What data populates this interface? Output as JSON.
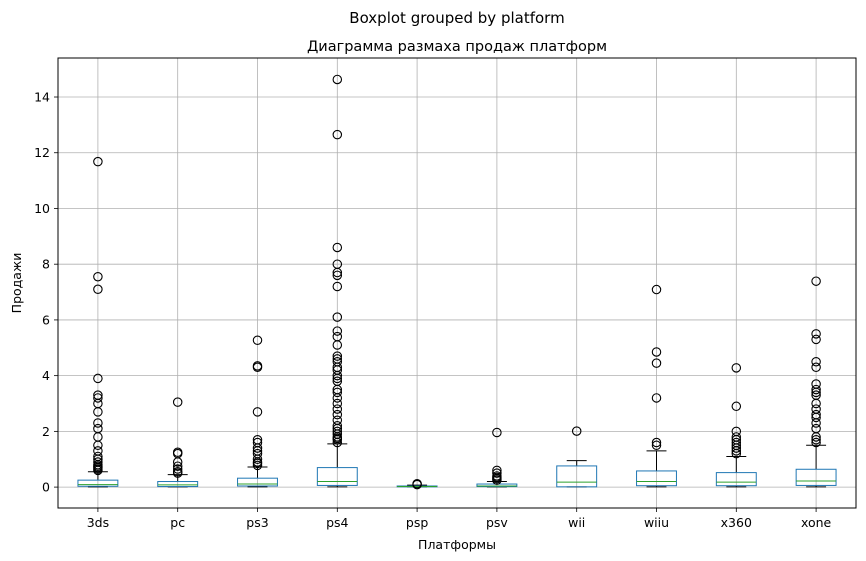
{
  "chart_data": {
    "type": "box",
    "suptitle": "Boxplot grouped by platform",
    "title": "Диаграмма размаха продаж платформ",
    "xlabel": "Платформы",
    "ylabel": "Продажи",
    "ylim": [
      -0.75,
      15.4
    ],
    "yticks": [
      0,
      2,
      4,
      6,
      8,
      10,
      12,
      14
    ],
    "grid": true,
    "colors": {
      "box": "#1f77b4",
      "median": "#2ca02c",
      "whisker": "#000000",
      "grid": "#b0b0b0",
      "flier": "#000000"
    },
    "categories": [
      "3ds",
      "pc",
      "ps3",
      "ps4",
      "psp",
      "psv",
      "wii",
      "wiiu",
      "x360",
      "xone"
    ],
    "boxes": [
      {
        "q1": 0.03,
        "median": 0.09,
        "q3": 0.25,
        "whislo": 0.01,
        "whishi": 0.55,
        "fliers": [
          0.6,
          0.65,
          0.7,
          0.75,
          0.8,
          0.9,
          1.0,
          1.1,
          1.3,
          1.5,
          1.8,
          2.1,
          2.3,
          2.7,
          3.0,
          3.2,
          3.3,
          3.9,
          7.1,
          7.55,
          11.68
        ]
      },
      {
        "q1": 0.02,
        "median": 0.08,
        "q3": 0.2,
        "whislo": 0.01,
        "whishi": 0.45,
        "fliers": [
          0.5,
          0.55,
          0.65,
          0.75,
          0.9,
          1.2,
          1.25,
          3.05
        ]
      },
      {
        "q1": 0.04,
        "median": 0.11,
        "q3": 0.32,
        "whislo": 0.01,
        "whishi": 0.72,
        "fliers": [
          0.78,
          0.85,
          0.9,
          1.0,
          1.2,
          1.3,
          1.4,
          1.6,
          1.7,
          2.7,
          4.3,
          4.35,
          5.27
        ]
      },
      {
        "q1": 0.06,
        "median": 0.2,
        "q3": 0.7,
        "whislo": 0.01,
        "whishi": 1.55,
        "fliers": [
          1.6,
          1.7,
          1.75,
          1.8,
          1.9,
          2.0,
          2.1,
          2.2,
          2.4,
          2.6,
          2.8,
          3.0,
          3.2,
          3.4,
          3.5,
          3.8,
          3.9,
          4.0,
          4.2,
          4.3,
          4.5,
          4.6,
          4.7,
          5.1,
          5.4,
          5.6,
          6.1,
          7.2,
          7.6,
          7.7,
          8.0,
          8.6,
          12.65,
          14.63
        ]
      },
      {
        "q1": 0.01,
        "median": 0.02,
        "q3": 0.04,
        "whislo": 0.01,
        "whishi": 0.07,
        "fliers": [
          0.09,
          0.12
        ]
      },
      {
        "q1": 0.02,
        "median": 0.04,
        "q3": 0.11,
        "whislo": 0.01,
        "whishi": 0.2,
        "fliers": [
          0.25,
          0.3,
          0.35,
          0.4,
          0.5,
          0.6,
          1.96
        ]
      },
      {
        "q1": 0.01,
        "median": 0.18,
        "q3": 0.76,
        "whislo": 0.01,
        "whishi": 0.95,
        "fliers": [
          2.01
        ]
      },
      {
        "q1": 0.05,
        "median": 0.2,
        "q3": 0.58,
        "whislo": 0.01,
        "whishi": 1.3,
        "fliers": [
          1.5,
          1.6,
          3.2,
          4.45,
          4.85,
          7.09
        ]
      },
      {
        "q1": 0.05,
        "median": 0.18,
        "q3": 0.52,
        "whislo": 0.01,
        "whishi": 1.1,
        "fliers": [
          1.2,
          1.3,
          1.4,
          1.5,
          1.6,
          1.7,
          1.8,
          2.0,
          2.9,
          4.28
        ]
      },
      {
        "q1": 0.06,
        "median": 0.22,
        "q3": 0.64,
        "whislo": 0.01,
        "whishi": 1.5,
        "fliers": [
          1.6,
          1.7,
          1.8,
          2.1,
          2.3,
          2.5,
          2.6,
          2.8,
          3.0,
          3.3,
          3.4,
          3.5,
          3.7,
          4.3,
          4.5,
          5.3,
          5.5,
          7.39
        ]
      }
    ]
  }
}
